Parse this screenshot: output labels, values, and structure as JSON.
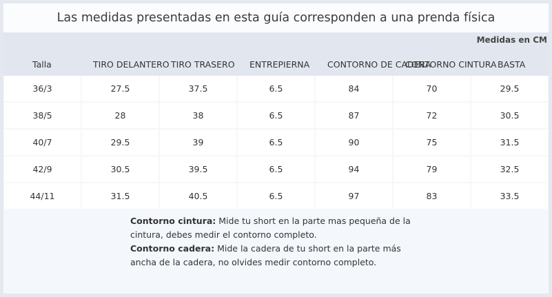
{
  "title": "Las medidas presentadas en esta guía corresponden a una prenda física",
  "unit_label": "Medidas en CM",
  "columns": [
    "Talla",
    "TIRO DELANTERO",
    "TIRO TRASERO",
    "ENTREPIERNA",
    "CONTORNO DE CADERA",
    "CONTORNO CINTURA",
    "BASTA"
  ],
  "rows": [
    [
      "36/3",
      "27.5",
      "37.5",
      "6.5",
      "84",
      "70",
      "29.5"
    ],
    [
      "38/5",
      "28",
      "38",
      "6.5",
      "87",
      "72",
      "30.5"
    ],
    [
      "40/7",
      "29.5",
      "39",
      "6.5",
      "90",
      "75",
      "31.5"
    ],
    [
      "42/9",
      "30.5",
      "39.5",
      "6.5",
      "94",
      "79",
      "32.5"
    ],
    [
      "44/11",
      "31.5",
      "40.5",
      "6.5",
      "97",
      "83",
      "33.5"
    ]
  ],
  "notes": {
    "cintura_label": "Contorno cintura:",
    "cintura_text": " Mide tu short  en la parte mas pequeña de la cintura, debes medir el contorno completo.",
    "cadera_label": "Contorno cadera:",
    "cadera_text": " Mide la cadera de tu short en la parte más ancha de la cadera, no olvides medir contorno completo."
  }
}
